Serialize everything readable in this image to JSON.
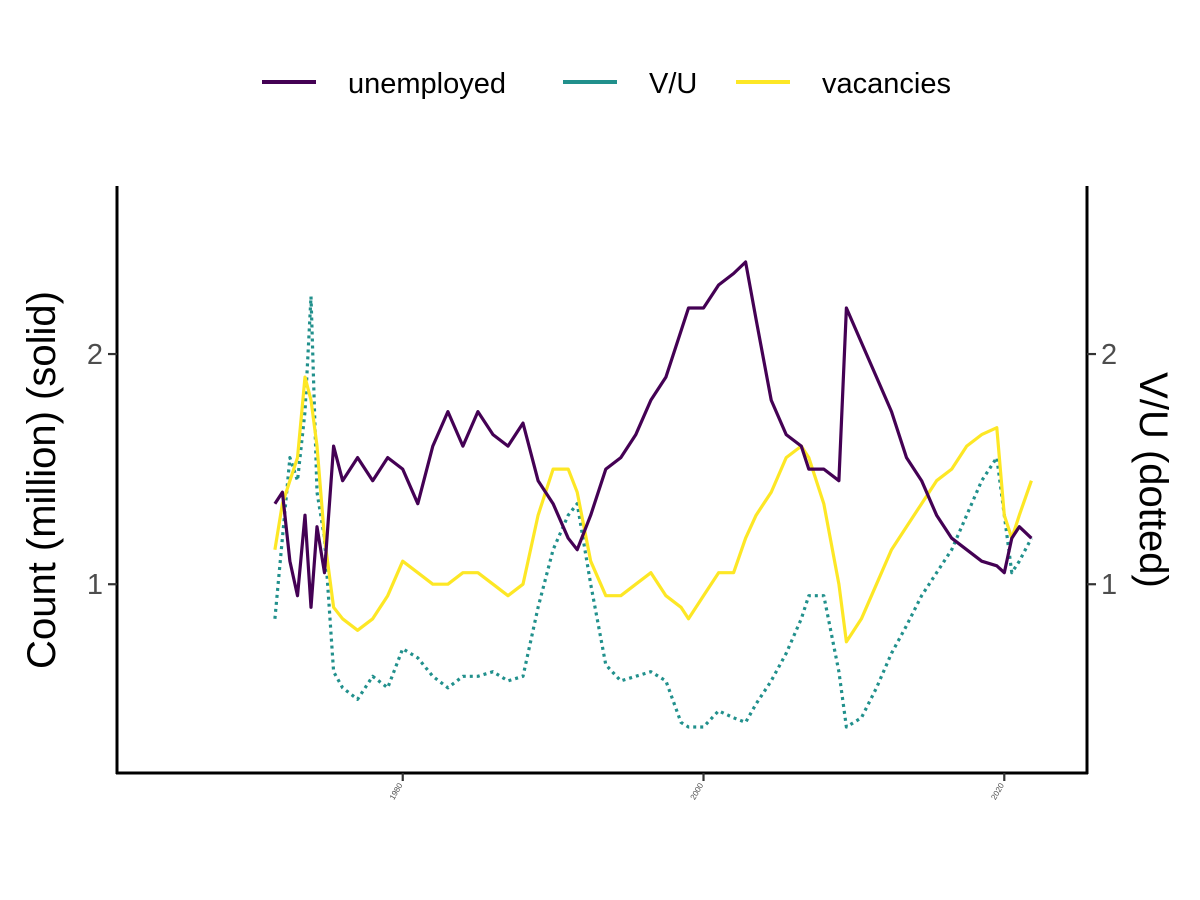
{
  "chart_data": {
    "type": "line",
    "title": "",
    "xlabel": "",
    "ylabel_left": "Count (million) (solid)",
    "ylabel_right": "V/U (dotted)",
    "x_ticks": [
      "1980",
      "2000",
      "2020"
    ],
    "y_ticks": [
      "1",
      "2"
    ],
    "xlim": [
      1961.0,
      2025.5
    ],
    "ylim": [
      0.18,
      2.73
    ],
    "y2lim": [
      0.18,
      2.73
    ],
    "legend_position": "top",
    "grid": false,
    "colors": {
      "unemployed": "#440154",
      "vu": "#21908C",
      "vacancies": "#FDE725"
    },
    "legend": [
      "unemployed",
      "V/U",
      "vacancies"
    ],
    "series": [
      {
        "name": "unemployed",
        "axis": "left",
        "style": "solid",
        "x": [
          1971.5,
          1972.0,
          1972.5,
          1973.0,
          1973.5,
          1973.9,
          1974.3,
          1974.8,
          1975.4,
          1976.0,
          1977.0,
          1978.0,
          1979.0,
          1980.0,
          1981.0,
          1982.0,
          1983.0,
          1984.0,
          1985.0,
          1986.0,
          1987.0,
          1988.0,
          1989.0,
          1990.0,
          1991.0,
          1991.6,
          1992.5,
          1993.5,
          1994.5,
          1995.5,
          1996.5,
          1997.5,
          1998.5,
          1999.0,
          2000.0,
          2001.0,
          2002.0,
          2002.8,
          2003.5,
          2004.5,
          2005.5,
          2006.5,
          2007.0,
          2008.0,
          2009.0,
          2009.5,
          2010.5,
          2011.5,
          2012.5,
          2013.5,
          2014.5,
          2015.5,
          2016.5,
          2017.5,
          2018.5,
          2019.5,
          2020.0,
          2020.5,
          2021.0,
          2021.8
        ],
        "values": [
          1.35,
          1.4,
          1.1,
          0.95,
          1.3,
          0.9,
          1.25,
          1.05,
          1.6,
          1.45,
          1.55,
          1.45,
          1.55,
          1.5,
          1.35,
          1.6,
          1.75,
          1.6,
          1.75,
          1.65,
          1.6,
          1.7,
          1.45,
          1.35,
          1.2,
          1.15,
          1.3,
          1.5,
          1.55,
          1.65,
          1.8,
          1.9,
          2.1,
          2.2,
          2.2,
          2.3,
          2.35,
          2.4,
          2.15,
          1.8,
          1.65,
          1.6,
          1.5,
          1.5,
          1.45,
          2.2,
          2.05,
          1.9,
          1.75,
          1.55,
          1.45,
          1.3,
          1.2,
          1.15,
          1.1,
          1.08,
          1.05,
          1.2,
          1.25,
          1.2
        ]
      },
      {
        "name": "V/U",
        "axis": "right",
        "style": "dotted",
        "x": [
          1971.5,
          1972.0,
          1972.5,
          1973.0,
          1973.5,
          1973.9,
          1974.3,
          1974.8,
          1975.4,
          1976.0,
          1977.0,
          1978.0,
          1979.0,
          1980.0,
          1981.0,
          1982.0,
          1983.0,
          1984.0,
          1985.0,
          1986.0,
          1987.0,
          1988.0,
          1989.0,
          1990.0,
          1991.0,
          1991.6,
          1992.5,
          1993.5,
          1994.5,
          1995.5,
          1996.5,
          1997.5,
          1998.5,
          1999.0,
          2000.0,
          2001.0,
          2002.0,
          2002.8,
          2003.5,
          2004.5,
          2005.5,
          2006.5,
          2007.0,
          2008.0,
          2009.0,
          2009.5,
          2010.5,
          2011.5,
          2012.5,
          2013.5,
          2014.5,
          2015.5,
          2016.5,
          2017.5,
          2018.5,
          2019.5,
          2020.0,
          2020.5,
          2021.0,
          2021.8
        ],
        "values": [
          0.85,
          1.2,
          1.55,
          1.45,
          1.75,
          2.25,
          1.4,
          1.2,
          0.62,
          0.55,
          0.5,
          0.6,
          0.55,
          0.72,
          0.68,
          0.6,
          0.55,
          0.6,
          0.6,
          0.62,
          0.58,
          0.6,
          0.9,
          1.15,
          1.3,
          1.35,
          1.0,
          0.65,
          0.58,
          0.6,
          0.62,
          0.58,
          0.4,
          0.38,
          0.38,
          0.45,
          0.42,
          0.4,
          0.48,
          0.58,
          0.7,
          0.85,
          0.95,
          0.95,
          0.62,
          0.38,
          0.42,
          0.55,
          0.7,
          0.82,
          0.95,
          1.05,
          1.15,
          1.3,
          1.45,
          1.55,
          1.3,
          1.05,
          1.1,
          1.2
        ]
      },
      {
        "name": "vacancies",
        "axis": "left",
        "style": "solid",
        "x": [
          1971.5,
          1972.0,
          1972.5,
          1973.0,
          1973.5,
          1973.9,
          1974.3,
          1974.8,
          1975.4,
          1976.0,
          1977.0,
          1978.0,
          1979.0,
          1980.0,
          1981.0,
          1982.0,
          1983.0,
          1984.0,
          1985.0,
          1986.0,
          1987.0,
          1988.0,
          1989.0,
          1990.0,
          1991.0,
          1991.6,
          1992.5,
          1993.5,
          1994.5,
          1995.5,
          1996.5,
          1997.5,
          1998.5,
          1999.0,
          2000.0,
          2001.0,
          2002.0,
          2002.8,
          2003.5,
          2004.5,
          2005.5,
          2006.5,
          2007.0,
          2008.0,
          2009.0,
          2009.5,
          2010.5,
          2011.5,
          2012.5,
          2013.5,
          2014.5,
          2015.5,
          2016.5,
          2017.5,
          2018.5,
          2019.5,
          2020.0,
          2020.5,
          2021.0,
          2021.8
        ],
        "values": [
          1.15,
          1.35,
          1.45,
          1.55,
          1.9,
          1.8,
          1.6,
          1.2,
          0.9,
          0.85,
          0.8,
          0.85,
          0.95,
          1.1,
          1.05,
          1.0,
          1.0,
          1.05,
          1.05,
          1.0,
          0.95,
          1.0,
          1.3,
          1.5,
          1.5,
          1.4,
          1.1,
          0.95,
          0.95,
          1.0,
          1.05,
          0.95,
          0.9,
          0.85,
          0.95,
          1.05,
          1.05,
          1.2,
          1.3,
          1.4,
          1.55,
          1.6,
          1.55,
          1.35,
          1.0,
          0.75,
          0.85,
          1.0,
          1.15,
          1.25,
          1.35,
          1.45,
          1.5,
          1.6,
          1.65,
          1.68,
          1.3,
          1.2,
          1.3,
          1.45
        ]
      }
    ]
  }
}
